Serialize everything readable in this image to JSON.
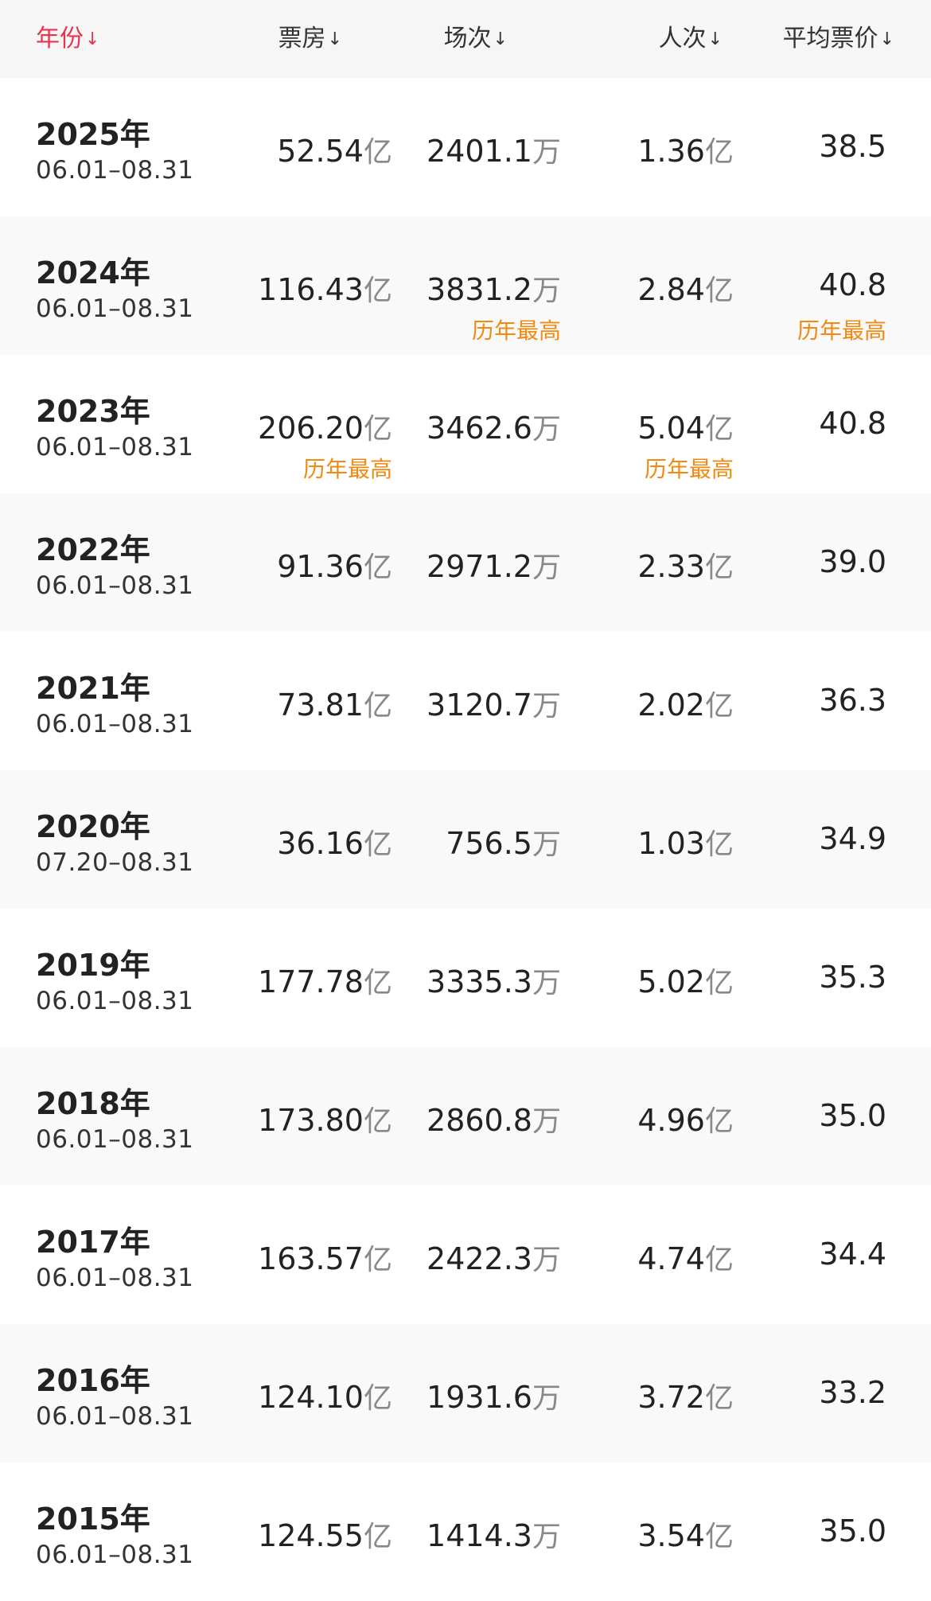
{
  "header": {
    "year": "年份",
    "box_office": "票房",
    "shows": "场次",
    "admissions": "人次",
    "avg_price": "平均票价",
    "sort_arrow": "↓"
  },
  "units": {
    "yi": "亿",
    "wan": "万"
  },
  "rows": [
    {
      "year": "2025年",
      "range": "06.01–08.31",
      "box": "52.54",
      "shows": "2401.1",
      "people": "1.36",
      "avg": "38.5",
      "box_note": "",
      "shows_note": "",
      "people_note": "",
      "avg_note": ""
    },
    {
      "year": "2024年",
      "range": "06.01–08.31",
      "box": "116.43",
      "shows": "3831.2",
      "people": "2.84",
      "avg": "40.8",
      "box_note": "",
      "shows_note": "历年最高",
      "people_note": "",
      "avg_note": "历年最高"
    },
    {
      "year": "2023年",
      "range": "06.01–08.31",
      "box": "206.20",
      "shows": "3462.6",
      "people": "5.04",
      "avg": "40.8",
      "box_note": "历年最高",
      "shows_note": "",
      "people_note": "历年最高",
      "avg_note": ""
    },
    {
      "year": "2022年",
      "range": "06.01–08.31",
      "box": "91.36",
      "shows": "2971.2",
      "people": "2.33",
      "avg": "39.0",
      "box_note": "",
      "shows_note": "",
      "people_note": "",
      "avg_note": ""
    },
    {
      "year": "2021年",
      "range": "06.01–08.31",
      "box": "73.81",
      "shows": "3120.7",
      "people": "2.02",
      "avg": "36.3",
      "box_note": "",
      "shows_note": "",
      "people_note": "",
      "avg_note": ""
    },
    {
      "year": "2020年",
      "range": "07.20–08.31",
      "box": "36.16",
      "shows": "756.5",
      "people": "1.03",
      "avg": "34.9",
      "box_note": "",
      "shows_note": "",
      "people_note": "",
      "avg_note": ""
    },
    {
      "year": "2019年",
      "range": "06.01–08.31",
      "box": "177.78",
      "shows": "3335.3",
      "people": "5.02",
      "avg": "35.3",
      "box_note": "",
      "shows_note": "",
      "people_note": "",
      "avg_note": ""
    },
    {
      "year": "2018年",
      "range": "06.01–08.31",
      "box": "173.80",
      "shows": "2860.8",
      "people": "4.96",
      "avg": "35.0",
      "box_note": "",
      "shows_note": "",
      "people_note": "",
      "avg_note": ""
    },
    {
      "year": "2017年",
      "range": "06.01–08.31",
      "box": "163.57",
      "shows": "2422.3",
      "people": "4.74",
      "avg": "34.4",
      "box_note": "",
      "shows_note": "",
      "people_note": "",
      "avg_note": ""
    },
    {
      "year": "2016年",
      "range": "06.01–08.31",
      "box": "124.10",
      "shows": "1931.6",
      "people": "3.72",
      "avg": "33.2",
      "box_note": "",
      "shows_note": "",
      "people_note": "",
      "avg_note": ""
    },
    {
      "year": "2015年",
      "range": "06.01–08.31",
      "box": "124.55",
      "shows": "1414.3",
      "people": "3.54",
      "avg": "35.0",
      "box_note": "",
      "shows_note": "",
      "people_note": "",
      "avg_note": ""
    }
  ],
  "colors": {
    "active_sort": "#e8344e",
    "highlight_note": "#f08a12",
    "alt_row": "#f9f9f9",
    "header_bg": "#f6f6f6"
  }
}
